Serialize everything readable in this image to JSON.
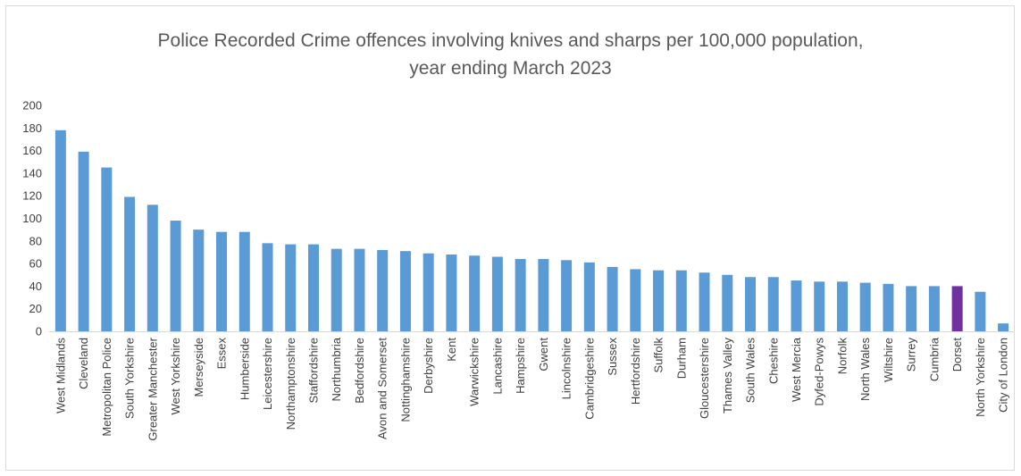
{
  "chart_data": {
    "type": "bar",
    "title_line1": "Police Recorded Crime offences involving knives and sharps per 100,000 population,",
    "title_line2": "year ending March 2023",
    "xlabel": "",
    "ylabel": "",
    "ylim": [
      0,
      200
    ],
    "yticks": [
      0,
      20,
      40,
      60,
      80,
      100,
      120,
      140,
      160,
      180,
      200
    ],
    "grid": false,
    "colors": {
      "default": "#5b9bd5",
      "highlight": "#7030a0",
      "axis": "#d9d9d9",
      "text": "#595959"
    },
    "highlight_category": "Dorset",
    "categories": [
      "West Midlands",
      "Cleveland",
      "Metropolitan Police",
      "South Yorkshire",
      "Greater Manchester",
      "West Yorkshire",
      "Merseyside",
      "Essex",
      "Humberside",
      "Leicestershire",
      "Northamptonshire",
      "Staffordshire",
      "Northumbria",
      "Bedfordshire",
      "Avon and Somerset",
      "Nottinghamshire",
      "Derbyshire",
      "Kent",
      "Warwickshire",
      "Lancashire",
      "Hampshire",
      "Gwent",
      "Lincolnshire",
      "Cambridgeshire",
      "Sussex",
      "Hertfordshire",
      "Suffolk",
      "Durham",
      "Gloucestershire",
      "Thames Valley",
      "South Wales",
      "Cheshire",
      "West Mercia",
      "Dyfed-Powys",
      "Norfolk",
      "North Wales",
      "Wiltshire",
      "Surrey",
      "Cumbria",
      "Dorset",
      "North Yorkshire",
      "City of London"
    ],
    "values": [
      178,
      159,
      145,
      119,
      112,
      98,
      90,
      88,
      88,
      78,
      77,
      77,
      73,
      73,
      72,
      71,
      69,
      68,
      67,
      66,
      64,
      64,
      63,
      61,
      57,
      55,
      54,
      54,
      52,
      50,
      48,
      48,
      45,
      44,
      44,
      43,
      42,
      40,
      40,
      40,
      35,
      7
    ]
  }
}
